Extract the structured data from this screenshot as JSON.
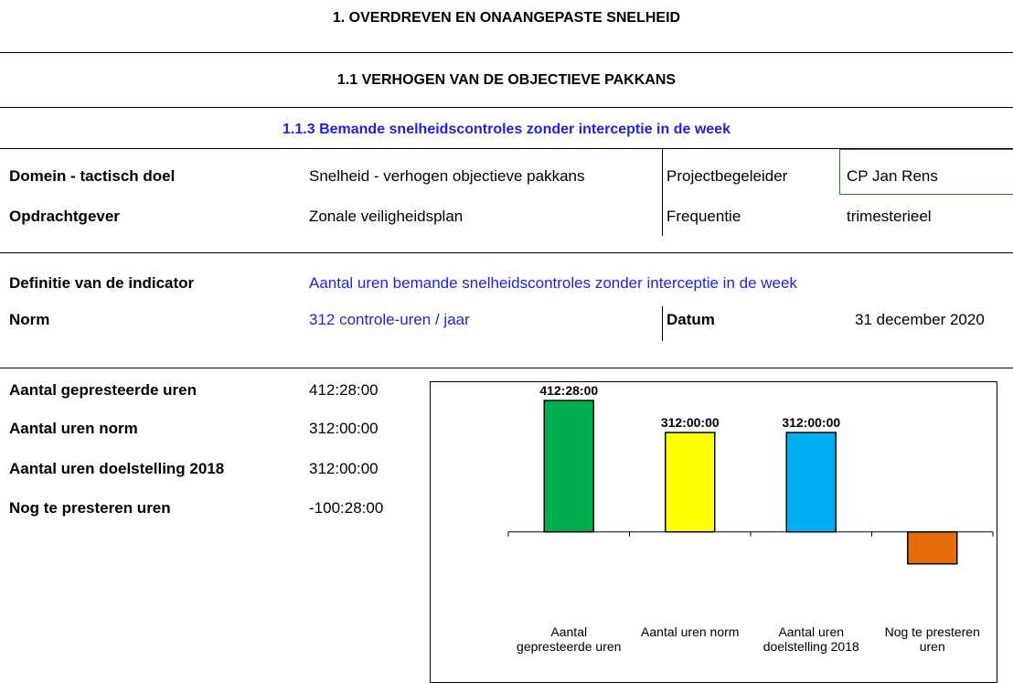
{
  "header": {
    "title": "1. OVERDREVEN EN ONAANGEPASTE SNELHEID",
    "subtitle": "1.1 VERHOGEN VAN DE OBJECTIEVE PAKKANS",
    "section": "1.1.3 Bemande snelheidscontroles zonder interceptie in de week"
  },
  "info": {
    "rows": [
      [
        "Domein - tactisch doel",
        "Snelheid - verhogen objectieve pakkans",
        "Projectbegeleider",
        "CP Jan Rens"
      ],
      [
        "Opdrachtgever",
        "Zonale veiligheidsplan",
        "Frequentie",
        "trimesterieel"
      ]
    ]
  },
  "definition": {
    "label": "Definitie van de indicator",
    "value": "Aantal uren bemande snelheidscontroles zonder interceptie in de week"
  },
  "norm": {
    "label": "Norm",
    "value": "312 controle-uren / jaar",
    "date_label": "Datum",
    "date": "31 december 2020"
  },
  "stats": {
    "rows": [
      [
        "Aantal gepresteerde uren",
        "412:28:00"
      ],
      [
        "Aantal uren norm",
        "312:00:00"
      ],
      [
        "Aantal uren doelstelling 2018",
        "312:00:00"
      ],
      [
        "Nog te presteren uren",
        "-100:28:00"
      ]
    ]
  },
  "chart_data": {
    "type": "bar",
    "categories": [
      "Aantal gepresteerde uren",
      "Aantal uren norm",
      "Aantal uren doelstelling 2018",
      "Nog te presteren uren"
    ],
    "values": [
      412.4667,
      312,
      312,
      -100.4667
    ],
    "value_labels": [
      "412:28:00",
      "312:00:00",
      "312:00:00",
      null
    ],
    "colors": [
      "#00b050",
      "#ffff00",
      "#00b0f0",
      "#e46c0a"
    ],
    "ylim": [
      -400,
      450
    ]
  }
}
